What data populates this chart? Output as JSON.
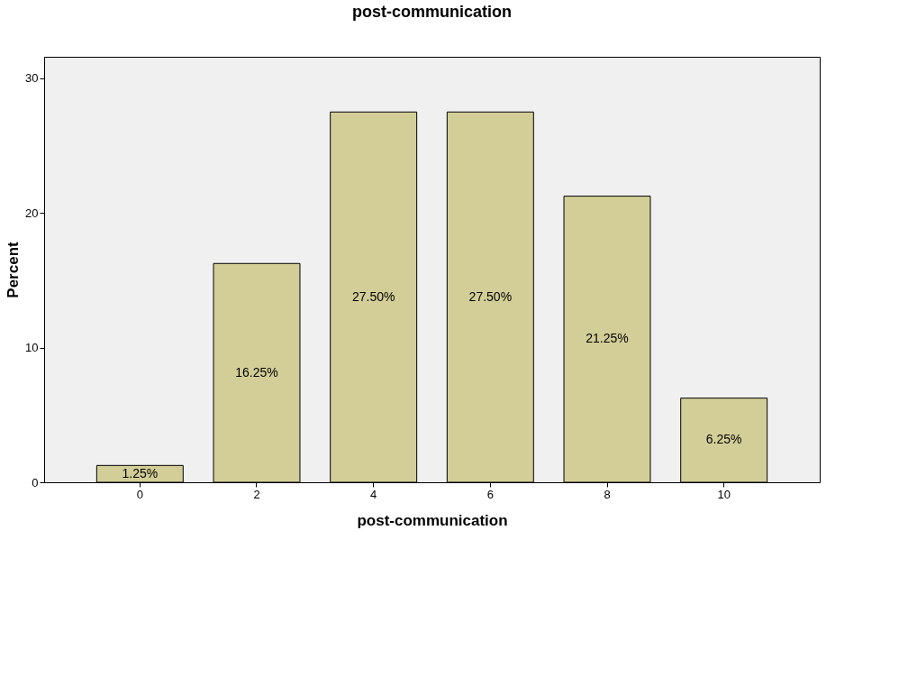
{
  "chart_data": {
    "type": "bar",
    "title": "post-communication",
    "xlabel": "post-communication",
    "ylabel": "Percent",
    "categories": [
      "0",
      "2",
      "4",
      "6",
      "8",
      "10"
    ],
    "values": [
      1.25,
      16.25,
      27.5,
      27.5,
      21.25,
      6.25
    ],
    "value_labels": [
      "1.25%",
      "16.25%",
      "27.50%",
      "27.50%",
      "21.25%",
      "6.25%"
    ],
    "color": "#d3ce97",
    "ylim": [
      0,
      31.6
    ],
    "yticks": [
      0,
      10,
      20,
      30
    ],
    "grid": false
  }
}
